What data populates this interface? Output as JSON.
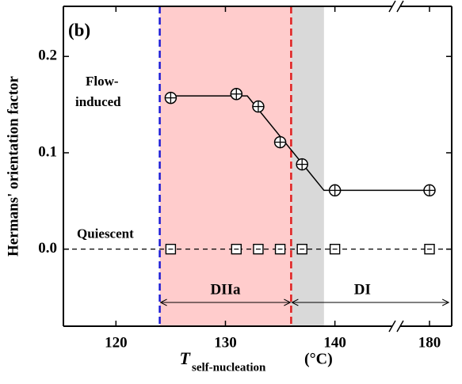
{
  "chart_data": {
    "type": "scatter",
    "panel_label": "(b)",
    "ylabel": "Hermans' orientation factor",
    "xlabel": {
      "main": "T",
      "sub": "self-nucleation",
      "unit": "(°C)"
    },
    "xlim": [
      115.2,
      182
    ],
    "xbreak": [
      145.6,
      177
    ],
    "xticks": [
      120,
      130,
      140,
      180
    ],
    "ylim": [
      -0.08,
      0.252
    ],
    "yticks": [
      {
        "value": 0,
        "label": "0.0"
      },
      {
        "value": 0.1,
        "label": "0.1"
      },
      {
        "value": 0.2,
        "label": "0.2"
      }
    ],
    "series": [
      {
        "name": "Flow-induced",
        "marker": "circle-cross",
        "color": "#000000",
        "x": [
          125,
          131,
          133,
          135,
          137,
          140,
          180
        ],
        "values": [
          0.157,
          0.161,
          0.148,
          0.111,
          0.088,
          0.061,
          0.061
        ]
      },
      {
        "name": "Quiescent",
        "marker": "square",
        "color": "#000000",
        "x": [
          125,
          131,
          133,
          135,
          137,
          140,
          180
        ],
        "values": [
          0,
          0,
          0,
          0,
          0,
          0,
          0
        ]
      }
    ],
    "fit_line": {
      "x": [
        125,
        132,
        139,
        180
      ],
      "values": [
        0.159,
        0.159,
        0.061,
        0.061
      ]
    },
    "hline": 0,
    "bands": [
      {
        "x0": 124,
        "x1": 136,
        "color": "#ffcccc"
      },
      {
        "x0": 136,
        "x1": 139,
        "color": "#d9d9d9"
      }
    ],
    "vlines": [
      {
        "x": 124,
        "color": "#1a1ad6"
      },
      {
        "x": 136,
        "color": "#e02020"
      }
    ],
    "spans": [
      {
        "label": "DIIa",
        "x0": 124,
        "x1": 136
      },
      {
        "label": "DI",
        "x0": 136,
        "x1": 181.8
      }
    ]
  }
}
